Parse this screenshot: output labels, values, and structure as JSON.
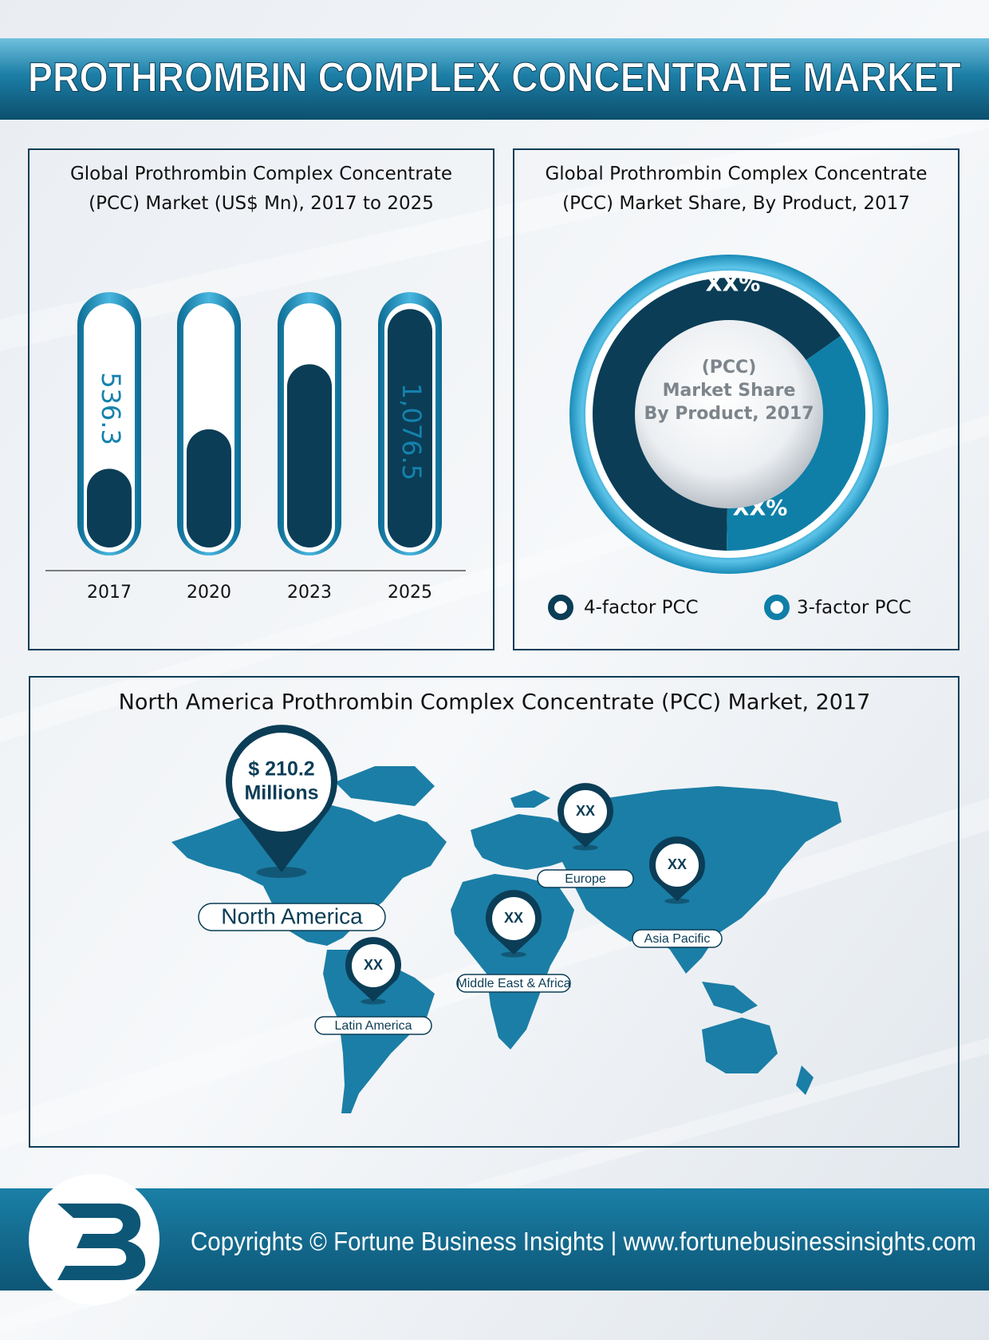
{
  "header": {
    "title": "PROTHROMBIN COMPLEX CONCENTRATE MARKET"
  },
  "chart_data": [
    {
      "type": "bar",
      "title": "Global Prothrombin Complex Concentrate (PCC) Market (US$ Mn), 2017 to 2025",
      "categories": [
        "2017",
        "2020",
        "2023",
        "2025"
      ],
      "values": [
        536.3,
        670,
        890,
        1076.5
      ],
      "value_labels": [
        "536.3",
        null,
        null,
        "1,076.5"
      ],
      "ylim": [
        270,
        1080
      ],
      "color": "#0b3d56"
    },
    {
      "type": "pie",
      "title": "Global Prothrombin Complex Concentrate (PCC) Market Share, By Product, 2017",
      "center_text": [
        "(PCC)",
        "Market Share",
        "By Product, 2017"
      ],
      "categories": [
        "4-factor PCC",
        "3-factor PCC"
      ],
      "values": [
        65,
        35
      ],
      "value_labels": [
        "XX%",
        "XX%"
      ],
      "colors": [
        "#0b3d56",
        "#0f7fa8"
      ]
    }
  ],
  "map": {
    "title": "North America Prothrombin Complex Concentrate (PCC) Market, 2017",
    "pins": [
      {
        "region": "North America",
        "value": [
          "$ 210.2",
          "Millions"
        ]
      },
      {
        "region": "Latin America",
        "value": [
          "XX"
        ]
      },
      {
        "region": "Europe",
        "value": [
          "XX"
        ]
      },
      {
        "region": "Asia Pacific",
        "value": [
          "XX"
        ]
      },
      {
        "region": "Middle East & Africa",
        "value": [
          "XX"
        ]
      }
    ]
  },
  "footer": {
    "text": "Copyrights © Fortune Business Insights | www.fortunebusinessinsights.com"
  }
}
